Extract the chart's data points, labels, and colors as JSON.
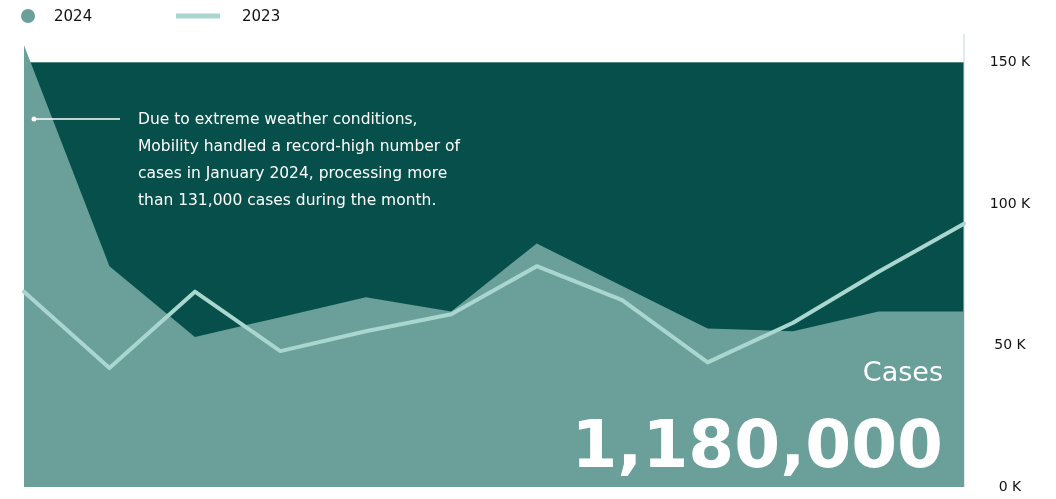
{
  "chart_data": {
    "type": "area",
    "categories": [
      null,
      null,
      null,
      null,
      null,
      null,
      null,
      null,
      null,
      null,
      null,
      null
    ],
    "series": [
      {
        "name": "2024",
        "color": "#6a9f9a",
        "values": [
          156,
          78,
          53,
          60,
          67,
          62,
          86,
          71,
          56,
          55,
          62,
          62
        ]
      },
      {
        "name": "2023",
        "type": "line",
        "color": "#a9d6cf",
        "values": [
          69,
          42,
          69,
          48,
          55,
          61,
          78,
          66,
          44,
          58,
          76,
          93
        ]
      }
    ],
    "ylim": [
      0,
      160
    ],
    "yticks": [
      {
        "value": 0,
        "label": "0 K"
      },
      {
        "value": 50,
        "label": "50 K"
      },
      {
        "value": 100,
        "label": "100 K"
      },
      {
        "value": 150,
        "label": "150 K"
      }
    ],
    "legend": "top left",
    "annotations": [
      "Due to extreme weather conditions, Mobility handled a record-high number of cases in January 2024, processing more than 131,000 cases during the month.",
      "Cases",
      "1,180,000"
    ]
  }
}
